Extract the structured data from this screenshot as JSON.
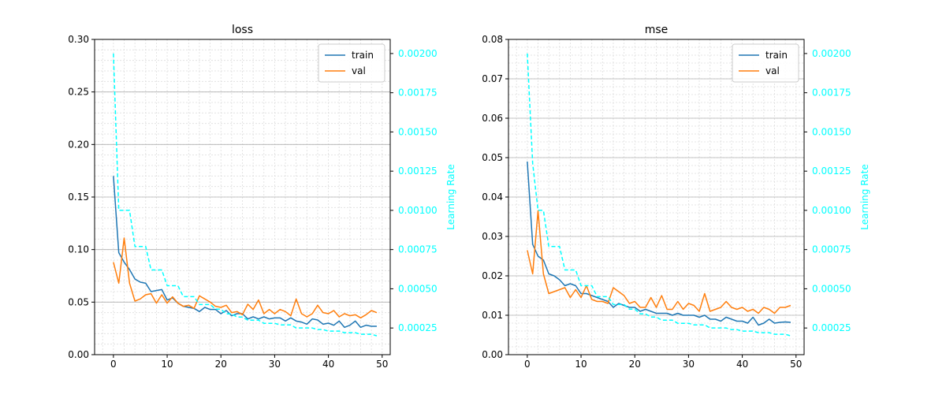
{
  "chart_data": [
    {
      "type": "line",
      "title": "loss",
      "xlabel": "",
      "ylabel": "",
      "y2label": "Learning Rate",
      "xlim": [
        -3.5,
        51.5
      ],
      "xticks": [
        "0",
        "10",
        "20",
        "30",
        "40",
        "50"
      ],
      "ylim": [
        0,
        0.3
      ],
      "yticks": [
        "0.00",
        "0.05",
        "0.10",
        "0.15",
        "0.20",
        "0.25",
        "0.30"
      ],
      "y2lim": [
        8e-05,
        0.00209
      ],
      "y2ticks": [
        "0.00025",
        "0.00050",
        "0.00075",
        "0.00100",
        "0.00125",
        "0.00150",
        "0.00175",
        "0.00200"
      ],
      "grid": true,
      "legend_position": "top-right",
      "x": [
        0,
        1,
        2,
        3,
        4,
        5,
        6,
        7,
        8,
        9,
        10,
        11,
        12,
        13,
        14,
        15,
        16,
        17,
        18,
        19,
        20,
        21,
        22,
        23,
        24,
        25,
        26,
        27,
        28,
        29,
        30,
        31,
        32,
        33,
        34,
        35,
        36,
        37,
        38,
        39,
        40,
        41,
        42,
        43,
        44,
        45,
        46,
        47,
        48,
        49
      ],
      "series": [
        {
          "name": "train",
          "axis": "left",
          "color": "#1f77b4",
          "dashed": false,
          "values": [
            0.17,
            0.097,
            0.088,
            0.081,
            0.072,
            0.069,
            0.068,
            0.06,
            0.061,
            0.062,
            0.052,
            0.054,
            0.049,
            0.046,
            0.045,
            0.044,
            0.041,
            0.045,
            0.043,
            0.043,
            0.039,
            0.042,
            0.037,
            0.039,
            0.039,
            0.034,
            0.036,
            0.034,
            0.036,
            0.034,
            0.035,
            0.035,
            0.032,
            0.035,
            0.032,
            0.031,
            0.029,
            0.034,
            0.033,
            0.029,
            0.03,
            0.028,
            0.032,
            0.026,
            0.028,
            0.032,
            0.026,
            0.028,
            0.027,
            0.027
          ]
        },
        {
          "name": "val",
          "axis": "left",
          "color": "#ff7f0e",
          "dashed": false,
          "values": [
            0.088,
            0.068,
            0.111,
            0.068,
            0.051,
            0.053,
            0.057,
            0.058,
            0.049,
            0.057,
            0.049,
            0.055,
            0.049,
            0.046,
            0.047,
            0.044,
            0.056,
            0.053,
            0.05,
            0.046,
            0.045,
            0.047,
            0.04,
            0.041,
            0.038,
            0.048,
            0.043,
            0.052,
            0.039,
            0.043,
            0.039,
            0.043,
            0.041,
            0.037,
            0.053,
            0.039,
            0.036,
            0.039,
            0.047,
            0.04,
            0.039,
            0.042,
            0.036,
            0.039,
            0.037,
            0.038,
            0.035,
            0.038,
            0.042,
            0.04
          ]
        },
        {
          "name": "",
          "axis": "right",
          "color": "#00ffff",
          "dashed": true,
          "values": [
            0.002,
            0.001,
            0.001,
            0.001,
            0.00077,
            0.00077,
            0.00077,
            0.00062,
            0.00062,
            0.00062,
            0.00052,
            0.00052,
            0.00052,
            0.00045,
            0.00045,
            0.00045,
            0.0004,
            0.0004,
            0.0004,
            0.00037,
            0.00037,
            0.00034,
            0.00034,
            0.00032,
            0.00032,
            0.0003,
            0.0003,
            0.0003,
            0.00028,
            0.00028,
            0.00028,
            0.00027,
            0.00027,
            0.00027,
            0.00025,
            0.00025,
            0.00025,
            0.00025,
            0.00024,
            0.00024,
            0.00023,
            0.00023,
            0.00023,
            0.00022,
            0.00022,
            0.00022,
            0.00021,
            0.00021,
            0.00021,
            0.0002
          ]
        }
      ]
    },
    {
      "type": "line",
      "title": "mse",
      "xlabel": "",
      "ylabel": "",
      "y2label": "Learning Rate",
      "xlim": [
        -3.5,
        51.5
      ],
      "xticks": [
        "0",
        "10",
        "20",
        "30",
        "40",
        "50"
      ],
      "ylim": [
        0,
        0.08
      ],
      "yticks": [
        "0.00",
        "0.01",
        "0.02",
        "0.03",
        "0.04",
        "0.05",
        "0.06",
        "0.07",
        "0.08"
      ],
      "y2lim": [
        8e-05,
        0.00209
      ],
      "y2ticks": [
        "0.00025",
        "0.00050",
        "0.00075",
        "0.00100",
        "0.00125",
        "0.00150",
        "0.00175",
        "0.00200"
      ],
      "grid": true,
      "legend_position": "top-right",
      "x": [
        0,
        1,
        2,
        3,
        4,
        5,
        6,
        7,
        8,
        9,
        10,
        11,
        12,
        13,
        14,
        15,
        16,
        17,
        18,
        19,
        20,
        21,
        22,
        23,
        24,
        25,
        26,
        27,
        28,
        29,
        30,
        31,
        32,
        33,
        34,
        35,
        36,
        37,
        38,
        39,
        40,
        41,
        42,
        43,
        44,
        45,
        46,
        47,
        48,
        49
      ],
      "series": [
        {
          "name": "train",
          "axis": "left",
          "color": "#1f77b4",
          "dashed": false,
          "values": [
            0.049,
            0.028,
            0.025,
            0.024,
            0.0205,
            0.02,
            0.019,
            0.0175,
            0.018,
            0.0175,
            0.0155,
            0.0155,
            0.015,
            0.0145,
            0.014,
            0.0135,
            0.012,
            0.013,
            0.0125,
            0.012,
            0.012,
            0.011,
            0.0115,
            0.011,
            0.0105,
            0.0105,
            0.0105,
            0.01,
            0.0105,
            0.01,
            0.01,
            0.01,
            0.0095,
            0.01,
            0.009,
            0.009,
            0.0085,
            0.0095,
            0.009,
            0.0085,
            0.0085,
            0.008,
            0.0095,
            0.0075,
            0.008,
            0.009,
            0.008,
            0.0082,
            0.0083,
            0.0082
          ]
        },
        {
          "name": "val",
          "axis": "left",
          "color": "#ff7f0e",
          "dashed": false,
          "values": [
            0.0265,
            0.0205,
            0.0365,
            0.0205,
            0.0155,
            0.016,
            0.0165,
            0.017,
            0.0145,
            0.0165,
            0.0145,
            0.0175,
            0.014,
            0.0135,
            0.0135,
            0.013,
            0.017,
            0.016,
            0.015,
            0.013,
            0.0135,
            0.012,
            0.012,
            0.0145,
            0.012,
            0.015,
            0.0115,
            0.0115,
            0.0135,
            0.0115,
            0.013,
            0.0125,
            0.011,
            0.0155,
            0.011,
            0.0115,
            0.012,
            0.0135,
            0.012,
            0.0115,
            0.012,
            0.011,
            0.0115,
            0.0105,
            0.012,
            0.0115,
            0.0105,
            0.012,
            0.012,
            0.0125
          ]
        },
        {
          "name": "",
          "axis": "right",
          "color": "#00ffff",
          "dashed": true,
          "values": [
            0.002,
            0.0013,
            0.001,
            0.001,
            0.00077,
            0.00077,
            0.00077,
            0.00062,
            0.00062,
            0.00062,
            0.00052,
            0.00052,
            0.00052,
            0.00045,
            0.00045,
            0.00045,
            0.0004,
            0.0004,
            0.0004,
            0.00037,
            0.00037,
            0.00034,
            0.00034,
            0.00032,
            0.00032,
            0.0003,
            0.0003,
            0.0003,
            0.00028,
            0.00028,
            0.00028,
            0.00027,
            0.00027,
            0.00027,
            0.00025,
            0.00025,
            0.00025,
            0.00025,
            0.00024,
            0.00024,
            0.00023,
            0.00023,
            0.00023,
            0.00022,
            0.00022,
            0.00022,
            0.00021,
            0.00021,
            0.00021,
            0.0002
          ]
        }
      ]
    }
  ]
}
